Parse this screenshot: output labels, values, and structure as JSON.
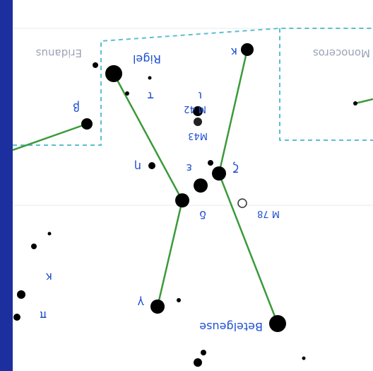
{
  "map": {
    "constellations": [
      "Eridanus",
      "Monoceros"
    ],
    "stars": {
      "rigel": "Rigel",
      "betelgeuse": "Betelgeuse",
      "kappa": "κ",
      "beta": "β",
      "tau": "τ",
      "iota": "ι",
      "eta": "η",
      "epsilon": "ε",
      "zeta": "ζ",
      "delta": "δ",
      "gamma": "γ",
      "kappa2": "κ",
      "pi": "π"
    },
    "objects": {
      "m42": "M 42",
      "m43": "M43",
      "m78": "M 78"
    }
  },
  "colors": {
    "background": "#1c2f9e",
    "chart": "#ffffff",
    "boundary": "#5bbfd0",
    "asterism": "#3a9a3a",
    "star": "#000000",
    "label": "#1f4fd0"
  }
}
